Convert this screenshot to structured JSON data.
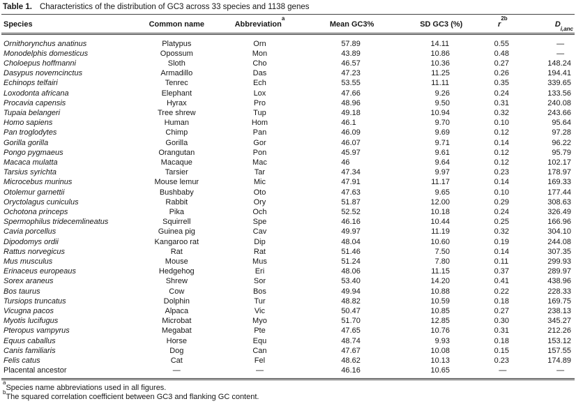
{
  "title": {
    "prefix": "Table 1.",
    "text": "Characteristics of the distribution of GC3 across 33 species and 1138 genes"
  },
  "table": {
    "columns": [
      {
        "label": "Species"
      },
      {
        "label": "Common name"
      },
      {
        "label": "Abbreviation",
        "sup": "a"
      },
      {
        "label": "Mean GC3%"
      },
      {
        "label": "SD GC3 (%)"
      },
      {
        "label": "r",
        "sup": "2b",
        "italic": true
      },
      {
        "label": "D",
        "sub": "i,anc",
        "italic": true
      }
    ],
    "rows": [
      {
        "species": "Ornithorynchus anatinus",
        "scientific": true,
        "common": "Platypus",
        "abbr": "Orn",
        "mean": "57.89",
        "sd": "14.11",
        "r2": "0.55",
        "d": "—"
      },
      {
        "species": "Monodelphis domesticus",
        "scientific": true,
        "common": "Opossum",
        "abbr": "Mon",
        "mean": "43.89",
        "sd": "10.86",
        "r2": "0.48",
        "d": "—"
      },
      {
        "species": "Choloepus hoffmanni",
        "scientific": true,
        "common": "Sloth",
        "abbr": "Cho",
        "mean": "46.57",
        "sd": "10.36",
        "r2": "0.27",
        "d": "148.24"
      },
      {
        "species": "Dasypus novemcinctus",
        "scientific": true,
        "common": "Armadillo",
        "abbr": "Das",
        "mean": "47.23",
        "sd": "11.25",
        "r2": "0.26",
        "d": "194.41"
      },
      {
        "species": "Echinops telfairi",
        "scientific": true,
        "common": "Tenrec",
        "abbr": "Ech",
        "mean": "53.55",
        "sd": "11.11",
        "r2": "0.35",
        "d": "339.65"
      },
      {
        "species": "Loxodonta africana",
        "scientific": true,
        "common": "Elephant",
        "abbr": "Lox",
        "mean": "47.66",
        "sd": "9.26",
        "r2": "0.24",
        "d": "133.56"
      },
      {
        "species": "Procavia capensis",
        "scientific": true,
        "common": "Hyrax",
        "abbr": "Pro",
        "mean": "48.96",
        "sd": "9.50",
        "r2": "0.31",
        "d": "240.08"
      },
      {
        "species": "Tupaia belangeri",
        "scientific": true,
        "common": "Tree shrew",
        "abbr": "Tup",
        "mean": "49.18",
        "sd": "10.94",
        "r2": "0.32",
        "d": "243.66"
      },
      {
        "species": "Homo sapiens",
        "scientific": true,
        "common": "Human",
        "abbr": "Hom",
        "mean": "46.1",
        "sd": "9.70",
        "r2": "0.10",
        "d": "95.64"
      },
      {
        "species": "Pan troglodytes",
        "scientific": true,
        "common": "Chimp",
        "abbr": "Pan",
        "mean": "46.09",
        "sd": "9.69",
        "r2": "0.12",
        "d": "97.28"
      },
      {
        "species": "Gorilla gorilla",
        "scientific": true,
        "common": "Gorilla",
        "abbr": "Gor",
        "mean": "46.07",
        "sd": "9.71",
        "r2": "0.14",
        "d": "96.22"
      },
      {
        "species": "Pongo pygmaeus",
        "scientific": true,
        "common": "Orangutan",
        "abbr": "Pon",
        "mean": "45.97",
        "sd": "9.61",
        "r2": "0.12",
        "d": "95.79"
      },
      {
        "species": "Macaca mulatta",
        "scientific": true,
        "common": "Macaque",
        "abbr": "Mac",
        "mean": "46",
        "sd": "9.64",
        "r2": "0.12",
        "d": "102.17"
      },
      {
        "species": "Tarsius syrichta",
        "scientific": true,
        "common": "Tarsier",
        "abbr": "Tar",
        "mean": "47.34",
        "sd": "9.97",
        "r2": "0.23",
        "d": "178.97"
      },
      {
        "species": "Microcebus murinus",
        "scientific": true,
        "common": "Mouse lemur",
        "abbr": "Mic",
        "mean": "47.91",
        "sd": "11.17",
        "r2": "0.14",
        "d": "169.33"
      },
      {
        "species": "Otolemur garnettii",
        "scientific": true,
        "common": "Bushbaby",
        "abbr": "Oto",
        "mean": "47.63",
        "sd": "9.65",
        "r2": "0.10",
        "d": "177.44"
      },
      {
        "species": "Oryctolagus cuniculus",
        "scientific": true,
        "common": "Rabbit",
        "abbr": "Ory",
        "mean": "51.87",
        "sd": "12.00",
        "r2": "0.29",
        "d": "308.63"
      },
      {
        "species": "Ochotona princeps",
        "scientific": true,
        "common": "Pika",
        "abbr": "Och",
        "mean": "52.52",
        "sd": "10.18",
        "r2": "0.24",
        "d": "326.49"
      },
      {
        "species": "Spermophilus tridecemlineatus",
        "scientific": true,
        "common": "Squirrell",
        "abbr": "Spe",
        "mean": "46.16",
        "sd": "10.44",
        "r2": "0.25",
        "d": "166.96"
      },
      {
        "species": "Cavia porcellus",
        "scientific": true,
        "common": "Guinea pig",
        "abbr": "Cav",
        "mean": "49.97",
        "sd": "11.19",
        "r2": "0.32",
        "d": "304.10"
      },
      {
        "species": "Dipodomys ordii",
        "scientific": true,
        "common": "Kangaroo rat",
        "abbr": "Dip",
        "mean": "48.04",
        "sd": "10.60",
        "r2": "0.19",
        "d": "244.08"
      },
      {
        "species": "Rattus norvegicus",
        "scientific": true,
        "common": "Rat",
        "abbr": "Rat",
        "mean": "51.46",
        "sd": "7.50",
        "r2": "0.14",
        "d": "307.35"
      },
      {
        "species": "Mus musculus",
        "scientific": true,
        "common": "Mouse",
        "abbr": "Mus",
        "mean": "51.24",
        "sd": "7.80",
        "r2": "0.11",
        "d": "299.93"
      },
      {
        "species": "Erinaceus europeaus",
        "scientific": true,
        "common": "Hedgehog",
        "abbr": "Eri",
        "mean": "48.06",
        "sd": "11.15",
        "r2": "0.37",
        "d": "289.97"
      },
      {
        "species": "Sorex araneus",
        "scientific": true,
        "common": "Shrew",
        "abbr": "Sor",
        "mean": "53.40",
        "sd": "14.20",
        "r2": "0.41",
        "d": "438.96"
      },
      {
        "species": "Bos taurus",
        "scientific": true,
        "common": "Cow",
        "abbr": "Bos",
        "mean": "49.94",
        "sd": "10.88",
        "r2": "0.22",
        "d": "228.33"
      },
      {
        "species": "Tursiops truncatus",
        "scientific": true,
        "common": "Dolphin",
        "abbr": "Tur",
        "mean": "48.82",
        "sd": "10.59",
        "r2": "0.18",
        "d": "169.75"
      },
      {
        "species": "Vicugna pacos",
        "scientific": true,
        "common": "Alpaca",
        "abbr": "Vic",
        "mean": "50.47",
        "sd": "10.85",
        "r2": "0.27",
        "d": "238.13"
      },
      {
        "species": "Myotis lucifugus",
        "scientific": true,
        "common": "Microbat",
        "abbr": "Myo",
        "mean": "51.70",
        "sd": "12.85",
        "r2": "0.30",
        "d": "345.27"
      },
      {
        "species": "Pteropus vampyrus",
        "scientific": true,
        "common": "Megabat",
        "abbr": "Pte",
        "mean": "47.65",
        "sd": "10.76",
        "r2": "0.31",
        "d": "212.26"
      },
      {
        "species": "Equus caballus",
        "scientific": true,
        "common": "Horse",
        "abbr": "Equ",
        "mean": "48.74",
        "sd": "9.93",
        "r2": "0.18",
        "d": "153.12"
      },
      {
        "species": "Canis familiaris",
        "scientific": true,
        "common": "Dog",
        "abbr": "Can",
        "mean": "47.67",
        "sd": "10.08",
        "r2": "0.15",
        "d": "157.55"
      },
      {
        "species": "Felis catus",
        "scientific": true,
        "common": "Cat",
        "abbr": "Fel",
        "mean": "48.62",
        "sd": "10.13",
        "r2": "0.23",
        "d": "174.89"
      },
      {
        "species": "Placental ancestor",
        "scientific": false,
        "common": "—",
        "abbr": "—",
        "mean": "46.16",
        "sd": "10.65",
        "r2": "—",
        "d": "—"
      }
    ]
  },
  "footnotes": [
    {
      "sup": "a",
      "text": "Species name abbreviations used in all figures."
    },
    {
      "sup": "b",
      "text": "The squared correlation coefficient between GC3 and flanking GC content."
    }
  ]
}
